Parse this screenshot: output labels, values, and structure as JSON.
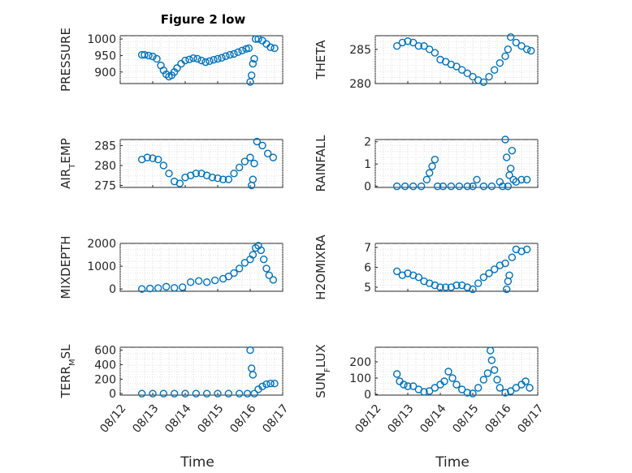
{
  "figure": {
    "title": "Figure 2 low",
    "marker_color": "#0072BD"
  },
  "chart_data": [
    {
      "type": "scatter",
      "ylabel": "PRESSURE",
      "xlabel": "",
      "title": "Figure 2 low",
      "ylim": [
        865,
        1010
      ],
      "yticks": [
        900,
        950,
        1000
      ],
      "xlim": [
        "08/12",
        "08/17"
      ],
      "xticks": [],
      "grid": true,
      "x": [
        "2023-08-12T16:00",
        "2023-08-12T18:00",
        "2023-08-12T21:00",
        "2023-08-13T00:00",
        "2023-08-13T03:00",
        "2023-08-13T06:00",
        "2023-08-13T08:00",
        "2023-08-13T10:00",
        "2023-08-13T12:00",
        "2023-08-13T14:00",
        "2023-08-13T16:00",
        "2023-08-13T18:00",
        "2023-08-13T21:00",
        "2023-08-14T00:00",
        "2023-08-14T03:00",
        "2023-08-14T06:00",
        "2023-08-14T09:00",
        "2023-08-14T12:00",
        "2023-08-14T15:00",
        "2023-08-14T18:00",
        "2023-08-14T21:00",
        "2023-08-15T00:00",
        "2023-08-15T03:00",
        "2023-08-15T06:00",
        "2023-08-15T09:00",
        "2023-08-15T12:00",
        "2023-08-15T15:00",
        "2023-08-15T18:00",
        "2023-08-15T21:00",
        "2023-08-15T23:00",
        "2023-08-16T00:00",
        "2023-08-16T01:00",
        "2023-08-16T02:00",
        "2023-08-16T03:00",
        "2023-08-16T04:00",
        "2023-08-16T06:00",
        "2023-08-16T09:00",
        "2023-08-16T12:00",
        "2023-08-16T15:00",
        "2023-08-16T18:00"
      ],
      "y": [
        952,
        952,
        950,
        947,
        940,
        920,
        905,
        893,
        886,
        890,
        900,
        912,
        925,
        935,
        938,
        942,
        940,
        935,
        930,
        933,
        937,
        940,
        943,
        948,
        952,
        955,
        960,
        965,
        970,
        972,
        870,
        890,
        925,
        940,
        1000,
        1000,
        995,
        985,
        975,
        972
      ]
    },
    {
      "type": "scatter",
      "ylabel": "THETA",
      "xlabel": "",
      "ylim": [
        280,
        287
      ],
      "yticks": [
        280,
        285
      ],
      "xlim": [
        "08/12",
        "08/17"
      ],
      "xticks": [],
      "grid": true,
      "x": [
        "2023-08-12T16:00",
        "2023-08-12T20:00",
        "2023-08-13T00:00",
        "2023-08-13T04:00",
        "2023-08-13T08:00",
        "2023-08-13T12:00",
        "2023-08-13T16:00",
        "2023-08-13T20:00",
        "2023-08-14T00:00",
        "2023-08-14T04:00",
        "2023-08-14T08:00",
        "2023-08-14T12:00",
        "2023-08-14T16:00",
        "2023-08-14T20:00",
        "2023-08-15T00:00",
        "2023-08-15T04:00",
        "2023-08-15T08:00",
        "2023-08-15T12:00",
        "2023-08-15T16:00",
        "2023-08-15T20:00",
        "2023-08-16T00:00",
        "2023-08-16T02:00",
        "2023-08-16T04:00",
        "2023-08-16T08:00",
        "2023-08-16T12:00",
        "2023-08-16T16:00",
        "2023-08-16T19:00"
      ],
      "y": [
        285.5,
        286,
        286.2,
        286,
        285.5,
        285.5,
        285,
        284.5,
        283.5,
        283.2,
        282.8,
        282.5,
        282,
        281.5,
        281,
        280.5,
        280.2,
        281,
        282,
        283,
        284,
        285,
        286.8,
        286,
        285.5,
        285,
        284.8
      ]
    },
    {
      "type": "scatter",
      "ylabel": "AIR_TEMP",
      "xlabel": "",
      "ylim": [
        274.5,
        286.5
      ],
      "yticks": [
        275,
        280,
        285
      ],
      "xlim": [
        "08/12",
        "08/17"
      ],
      "xticks": [],
      "grid": true,
      "x": [
        "2023-08-12T16:00",
        "2023-08-12T20:00",
        "2023-08-13T00:00",
        "2023-08-13T04:00",
        "2023-08-13T08:00",
        "2023-08-13T12:00",
        "2023-08-13T16:00",
        "2023-08-13T20:00",
        "2023-08-14T00:00",
        "2023-08-14T04:00",
        "2023-08-14T08:00",
        "2023-08-14T12:00",
        "2023-08-14T16:00",
        "2023-08-14T20:00",
        "2023-08-15T00:00",
        "2023-08-15T04:00",
        "2023-08-15T08:00",
        "2023-08-15T12:00",
        "2023-08-15T16:00",
        "2023-08-15T20:00",
        "2023-08-16T00:00",
        "2023-08-16T01:00",
        "2023-08-16T02:00",
        "2023-08-16T03:00",
        "2023-08-16T05:00",
        "2023-08-16T09:00",
        "2023-08-16T13:00",
        "2023-08-16T17:00"
      ],
      "y": [
        281.5,
        282,
        281.8,
        281.5,
        280,
        278,
        276,
        275.5,
        277,
        277.5,
        278,
        278,
        277.5,
        277,
        276.8,
        276.5,
        276.5,
        278,
        279.5,
        281,
        282,
        275,
        276.5,
        280.5,
        286,
        285,
        283,
        282
      ]
    },
    {
      "type": "scatter",
      "ylabel": "RAINFALL",
      "xlabel": "",
      "ylim": [
        -0.05,
        2.1
      ],
      "yticks": [
        0,
        1,
        2
      ],
      "xlim": [
        "08/12",
        "08/17"
      ],
      "xticks": [],
      "grid": true,
      "x": [
        "2023-08-12T16:00",
        "2023-08-12T22:00",
        "2023-08-13T04:00",
        "2023-08-13T10:00",
        "2023-08-13T14:00",
        "2023-08-13T16:00",
        "2023-08-13T18:00",
        "2023-08-13T20:00",
        "2023-08-13T22:00",
        "2023-08-14T02:00",
        "2023-08-14T08:00",
        "2023-08-14T14:00",
        "2023-08-14T20:00",
        "2023-08-15T00:00",
        "2023-08-15T03:00",
        "2023-08-15T08:00",
        "2023-08-15T14:00",
        "2023-08-15T20:00",
        "2023-08-15T22:00",
        "2023-08-16T00:00",
        "2023-08-16T01:00",
        "2023-08-16T02:00",
        "2023-08-16T03:00",
        "2023-08-16T04:00",
        "2023-08-16T05:00",
        "2023-08-16T06:00",
        "2023-08-16T08:00",
        "2023-08-16T12:00",
        "2023-08-16T16:00"
      ],
      "y": [
        0,
        0,
        0,
        0,
        0.3,
        0.6,
        0.9,
        1.2,
        0,
        0,
        0,
        0,
        0,
        0,
        0.3,
        0,
        0,
        0.2,
        0,
        2.1,
        1.3,
        0,
        0.5,
        0.8,
        1.6,
        0.3,
        0.2,
        0.3,
        0.3
      ]
    },
    {
      "type": "scatter",
      "ylabel": "MIXDEPTH",
      "xlabel": "",
      "ylim": [
        -100,
        2000
      ],
      "yticks": [
        0,
        1000,
        2000
      ],
      "xlim": [
        "08/12",
        "08/17"
      ],
      "xticks": [],
      "grid": true,
      "x": [
        "2023-08-12T16:00",
        "2023-08-12T22:00",
        "2023-08-13T04:00",
        "2023-08-13T10:00",
        "2023-08-13T16:00",
        "2023-08-13T22:00",
        "2023-08-14T04:00",
        "2023-08-14T10:00",
        "2023-08-14T16:00",
        "2023-08-14T22:00",
        "2023-08-15T04:00",
        "2023-08-15T08:00",
        "2023-08-15T12:00",
        "2023-08-15T16:00",
        "2023-08-15T20:00",
        "2023-08-16T00:00",
        "2023-08-16T02:00",
        "2023-08-16T04:00",
        "2023-08-16T06:00",
        "2023-08-16T08:00",
        "2023-08-16T10:00",
        "2023-08-16T12:00",
        "2023-08-16T14:00",
        "2023-08-16T17:00"
      ],
      "y": [
        0,
        20,
        40,
        100,
        50,
        80,
        300,
        350,
        300,
        380,
        450,
        550,
        700,
        900,
        1150,
        1300,
        1500,
        1800,
        1900,
        1700,
        1300,
        900,
        600,
        400
      ]
    },
    {
      "type": "scatter",
      "ylabel": "H2OMIXRA",
      "xlabel": "",
      "ylim": [
        4.8,
        7.2
      ],
      "yticks": [
        5,
        6,
        7
      ],
      "xlim": [
        "08/12",
        "08/17"
      ],
      "xticks": [],
      "grid": true,
      "x": [
        "2023-08-12T16:00",
        "2023-08-12T20:00",
        "2023-08-13T00:00",
        "2023-08-13T04:00",
        "2023-08-13T08:00",
        "2023-08-13T12:00",
        "2023-08-13T16:00",
        "2023-08-13T20:00",
        "2023-08-14T00:00",
        "2023-08-14T04:00",
        "2023-08-14T08:00",
        "2023-08-14T12:00",
        "2023-08-14T16:00",
        "2023-08-14T20:00",
        "2023-08-15T00:00",
        "2023-08-15T04:00",
        "2023-08-15T08:00",
        "2023-08-15T12:00",
        "2023-08-15T16:00",
        "2023-08-15T20:00",
        "2023-08-16T00:00",
        "2023-08-16T01:00",
        "2023-08-16T02:00",
        "2023-08-16T03:00",
        "2023-08-16T05:00",
        "2023-08-16T08:00",
        "2023-08-16T12:00",
        "2023-08-16T16:00"
      ],
      "y": [
        5.8,
        5.6,
        5.7,
        5.6,
        5.5,
        5.3,
        5.2,
        5.1,
        5.0,
        5.0,
        5.0,
        5.1,
        5.1,
        5.0,
        4.9,
        5.2,
        5.5,
        5.7,
        5.9,
        6.1,
        6.2,
        4.9,
        5.3,
        5.6,
        6.5,
        6.9,
        6.8,
        6.9
      ]
    },
    {
      "type": "scatter",
      "ylabel": "TERR_MSL",
      "xlabel": "Time",
      "ylim": [
        -20,
        640
      ],
      "yticks": [
        0,
        200,
        400,
        600
      ],
      "xlim": [
        "08/12",
        "08/17"
      ],
      "xticks": [
        "08/12",
        "08/13",
        "08/14",
        "08/15",
        "08/16",
        "08/17"
      ],
      "grid": true,
      "x": [
        "2023-08-12T16:00",
        "2023-08-13T00:00",
        "2023-08-13T08:00",
        "2023-08-13T16:00",
        "2023-08-14T00:00",
        "2023-08-14T08:00",
        "2023-08-14T16:00",
        "2023-08-15T00:00",
        "2023-08-15T08:00",
        "2023-08-15T16:00",
        "2023-08-15T22:00",
        "2023-08-16T00:00",
        "2023-08-16T01:00",
        "2023-08-16T02:00",
        "2023-08-16T03:00",
        "2023-08-16T06:00",
        "2023-08-16T09:00",
        "2023-08-16T12:00",
        "2023-08-16T15:00",
        "2023-08-16T18:00"
      ],
      "y": [
        0,
        0,
        0,
        0,
        0,
        0,
        0,
        0,
        0,
        0,
        0,
        600,
        350,
        260,
        0,
        60,
        100,
        130,
        140,
        140
      ]
    },
    {
      "type": "scatter",
      "ylabel": "SUN_FLUX",
      "xlabel": "Time",
      "ylim": [
        -5,
        290
      ],
      "yticks": [
        0,
        100,
        200
      ],
      "xlim": [
        "08/12",
        "08/17"
      ],
      "xticks": [
        "08/12",
        "08/13",
        "08/14",
        "08/15",
        "08/16",
        "08/17"
      ],
      "grid": true,
      "x": [
        "2023-08-12T16:00",
        "2023-08-12T18:00",
        "2023-08-12T21:00",
        "2023-08-13T00:00",
        "2023-08-13T04:00",
        "2023-08-13T08:00",
        "2023-08-13T12:00",
        "2023-08-13T16:00",
        "2023-08-13T20:00",
        "2023-08-14T00:00",
        "2023-08-14T03:00",
        "2023-08-14T06:00",
        "2023-08-14T09:00",
        "2023-08-14T12:00",
        "2023-08-14T16:00",
        "2023-08-14T20:00",
        "2023-08-15T00:00",
        "2023-08-15T04:00",
        "2023-08-15T08:00",
        "2023-08-15T11:00",
        "2023-08-15T13:00",
        "2023-08-15T14:00",
        "2023-08-15T16:00",
        "2023-08-15T18:00",
        "2023-08-15T20:00",
        "2023-08-16T00:00",
        "2023-08-16T04:00",
        "2023-08-16T08:00",
        "2023-08-16T12:00",
        "2023-08-16T15:00",
        "2023-08-16T18:00"
      ],
      "y": [
        125,
        80,
        60,
        50,
        50,
        30,
        15,
        20,
        40,
        60,
        80,
        140,
        100,
        60,
        30,
        10,
        5,
        40,
        90,
        130,
        270,
        210,
        150,
        90,
        40,
        10,
        20,
        40,
        60,
        80,
        40
      ]
    }
  ]
}
